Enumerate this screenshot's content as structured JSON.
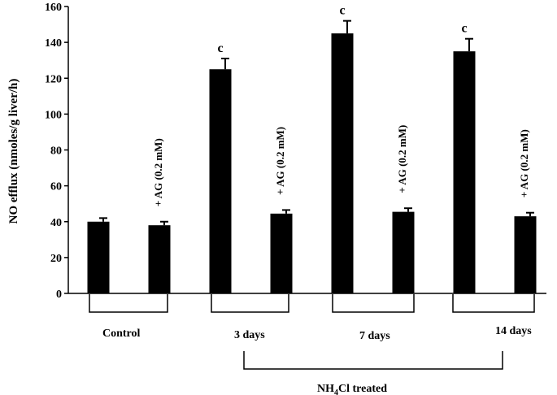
{
  "chart_data": {
    "type": "bar",
    "ylabel": "NO  efflux (nmoles/g liver/h)",
    "ylim": [
      0,
      160
    ],
    "yticks": [
      0,
      20,
      40,
      60,
      80,
      100,
      120,
      140,
      160
    ],
    "grid": false,
    "legend": "none",
    "bar_color": "#000000",
    "bars": [
      {
        "group": "Control",
        "treatment": "",
        "value": 40,
        "error": 2,
        "sig": "",
        "label": ""
      },
      {
        "group": "Control",
        "treatment": "+ AG (0.2 mM)",
        "value": 38,
        "error": 2,
        "sig": "",
        "label": "+ AG (0.2 mM)"
      },
      {
        "group": "3 days",
        "treatment": "",
        "value": 125,
        "error": 6,
        "sig": "c",
        "label": ""
      },
      {
        "group": "3 days",
        "treatment": "+ AG (0.2 mM)",
        "value": 44.5,
        "error": 2,
        "sig": "",
        "label": "+ AG (0.2 mM)"
      },
      {
        "group": "7 days",
        "treatment": "",
        "value": 145,
        "error": 7,
        "sig": "c",
        "label": ""
      },
      {
        "group": "7 days",
        "treatment": "+ AG (0.2 mM)",
        "value": 45.5,
        "error": 2,
        "sig": "",
        "label": "+ AG (0.2 mM)"
      },
      {
        "group": "14 days",
        "treatment": "",
        "value": 135,
        "error": 7,
        "sig": "c",
        "label": ""
      },
      {
        "group": "14 days",
        "treatment": "+ AG (0.2 mM)",
        "value": 43,
        "error": 2,
        "sig": "",
        "label": "+ AG (0.2 mM)"
      }
    ],
    "groups": [
      "Control",
      "3 days",
      "7 days",
      "14 days"
    ],
    "treated_label": {
      "main": "NH",
      "sub": "4",
      "rest": "Cl treated"
    }
  }
}
